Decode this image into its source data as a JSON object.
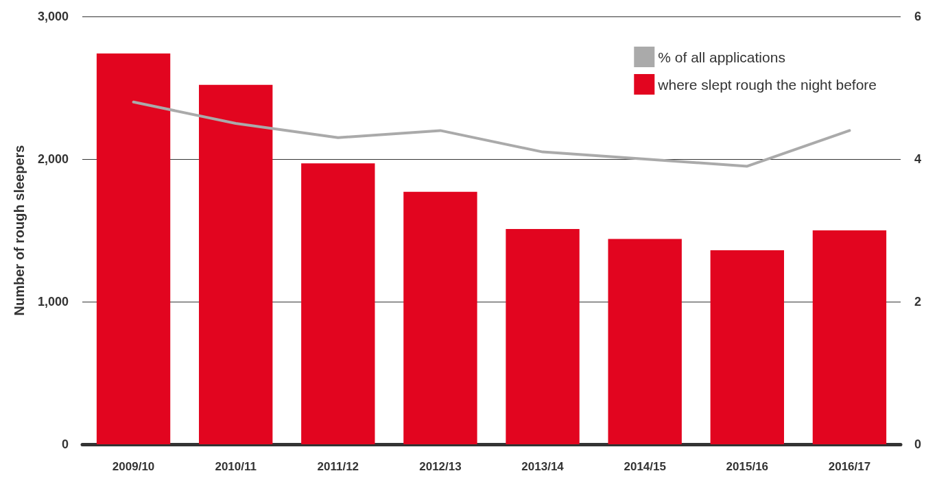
{
  "chart_data": {
    "type": "bar",
    "ylabel": "Number of rough sleepers",
    "categories": [
      "2009/10",
      "2010/11",
      "2011/12",
      "2012/13",
      "2013/14",
      "2014/15",
      "2015/16",
      "2016/17"
    ],
    "series": [
      {
        "name": "% of all applications",
        "type": "line",
        "axis": "y2",
        "color": "#aaaaaa",
        "values": [
          4.8,
          4.5,
          4.3,
          4.4,
          4.1,
          4.0,
          3.9,
          4.4
        ]
      },
      {
        "name": "where slept rough the night before",
        "color": "#e2051f",
        "values": [
          2740,
          2520,
          1970,
          1770,
          1510,
          1440,
          1360,
          1500
        ]
      }
    ],
    "ylim": [
      0,
      3000
    ],
    "yticks": [
      0,
      {
        "value": 1000,
        "label": "1,000"
      },
      {
        "value": 2000,
        "label": "2,000"
      },
      {
        "value": 3000,
        "label": "3,000"
      }
    ],
    "y2lim": [
      0,
      6
    ],
    "y2ticks": [
      0,
      2,
      4,
      6
    ],
    "grid": "y",
    "legend": "top right",
    "marker": "none",
    "line_style": "solid"
  }
}
